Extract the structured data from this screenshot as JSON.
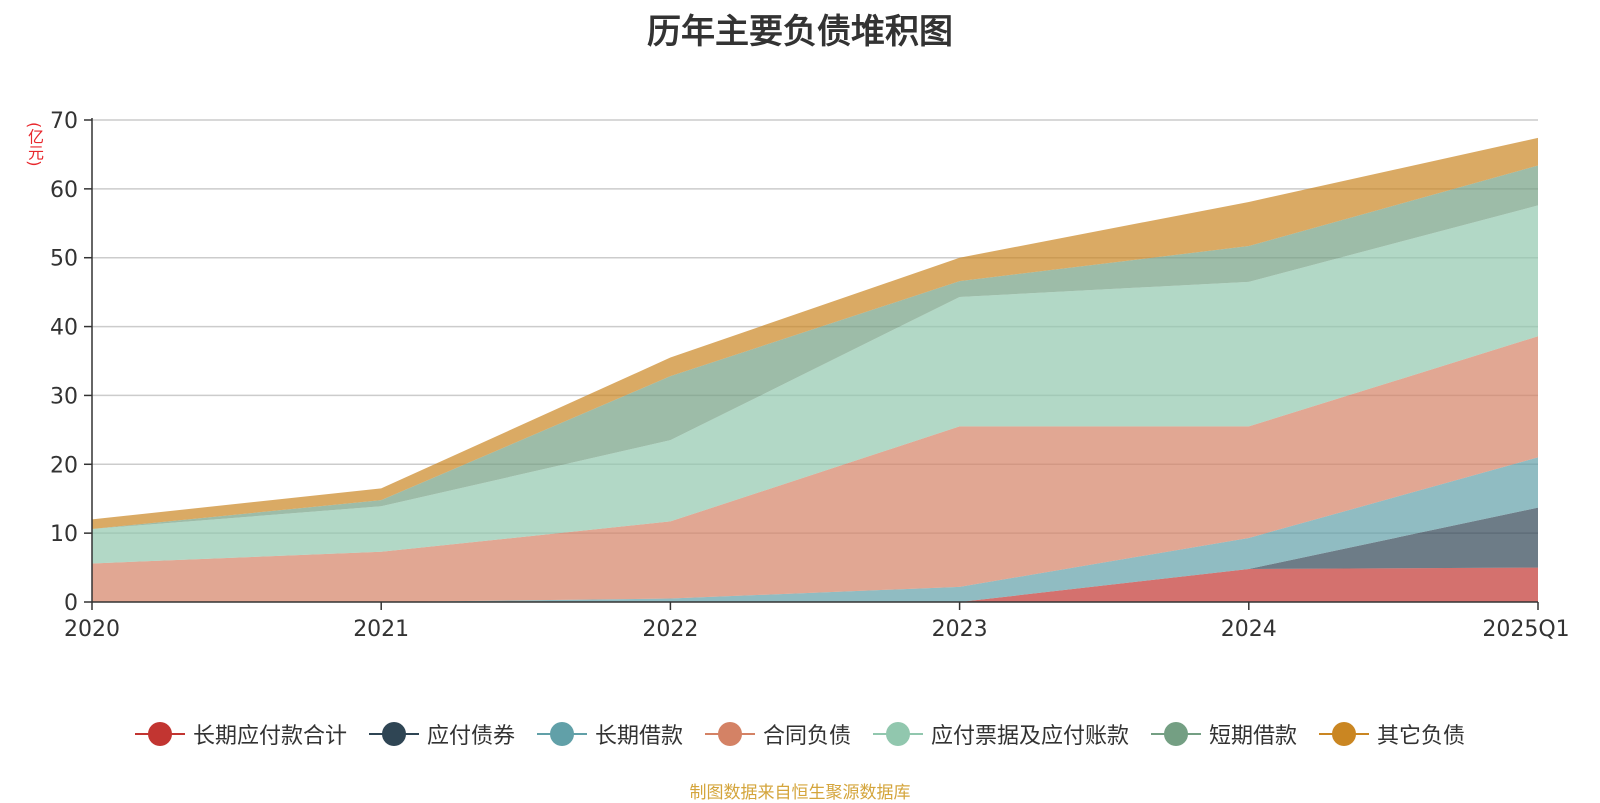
{
  "chart_data": {
    "type": "area",
    "title": "历年主要负债堆积图",
    "unit_label": "(亿元)",
    "x": [
      "2020",
      "2021",
      "2022",
      "2023",
      "2024",
      "2025Q1"
    ],
    "yticks": [
      "0",
      "10",
      "20",
      "30",
      "40",
      "50",
      "60",
      "70"
    ],
    "ylim": [
      0,
      70
    ],
    "grid": true,
    "legend_position": "bottom",
    "stacked": true,
    "series": [
      {
        "name": "长期应付款合计",
        "color": "#c23531",
        "values": [
          0,
          0,
          0,
          0,
          4.8,
          5.0
        ]
      },
      {
        "name": "应付债券",
        "color": "#2f4554",
        "values": [
          0,
          0,
          0,
          0,
          0,
          8.7
        ]
      },
      {
        "name": "长期借款",
        "color": "#61a0a8",
        "values": [
          0,
          0,
          0.5,
          2.2,
          4.5,
          7.3
        ]
      },
      {
        "name": "合同负债",
        "color": "#d48265",
        "values": [
          5.6,
          7.3,
          11.2,
          23.3,
          16.2,
          17.6
        ]
      },
      {
        "name": "应付票据及应付账款",
        "color": "#91c7ae",
        "values": [
          5.0,
          6.6,
          11.8,
          18.8,
          21.0,
          19.0
        ]
      },
      {
        "name": "短期借款",
        "color": "#749f83",
        "values": [
          0,
          0.9,
          9.3,
          2.3,
          5.2,
          5.8
        ]
      },
      {
        "name": "其它负债",
        "color": "#ca8622",
        "values": [
          1.4,
          1.7,
          2.7,
          3.4,
          6.4,
          4.0
        ]
      }
    ]
  },
  "footer": {
    "source": "制图数据来自恒生聚源数据库"
  }
}
